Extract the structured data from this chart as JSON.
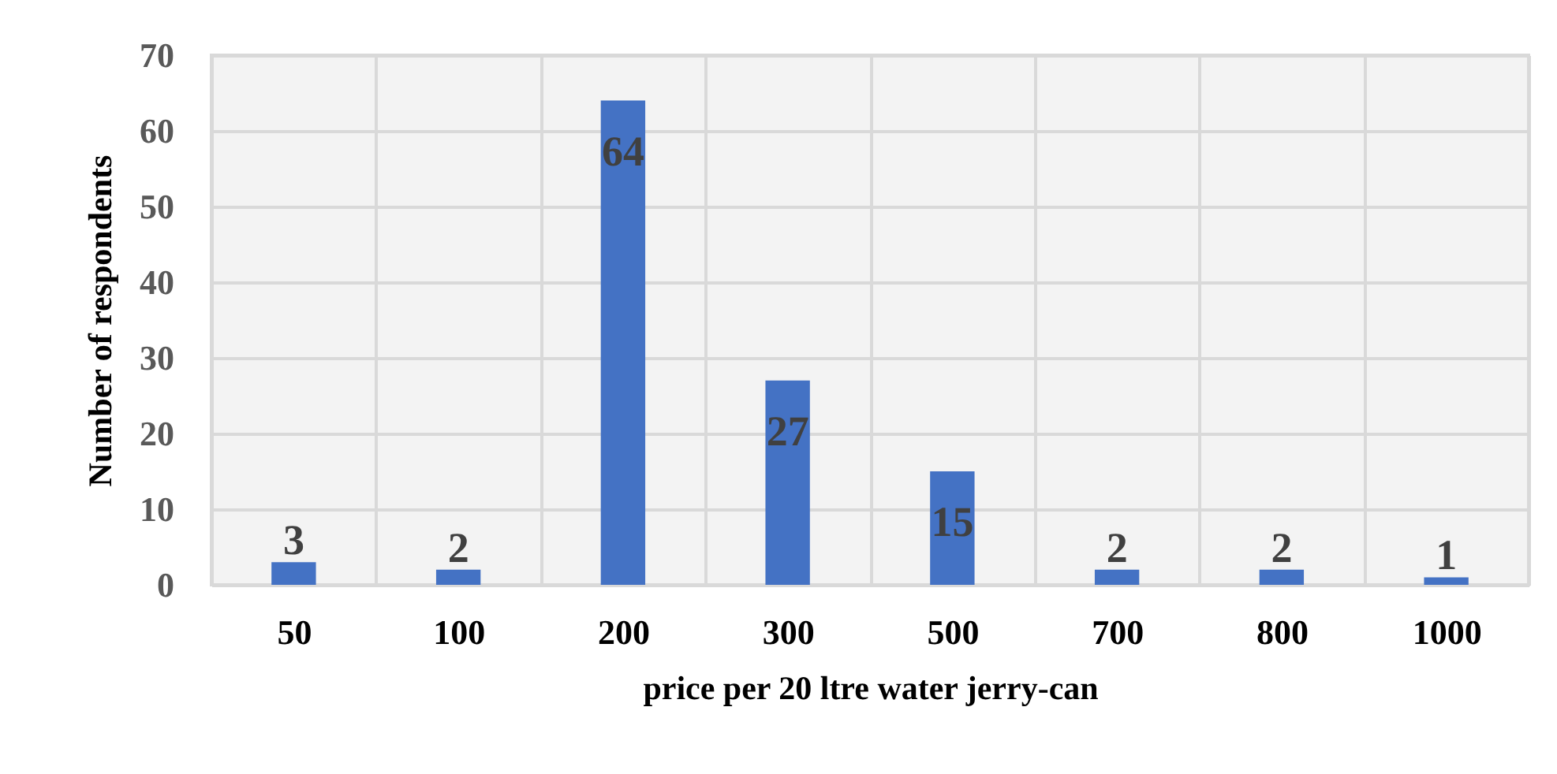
{
  "chart_data": {
    "type": "bar",
    "xlabel": "price per 20 ltre water jerry-can",
    "ylabel": "Number of respondents",
    "categories": [
      "50",
      "100",
      "200",
      "300",
      "500",
      "700",
      "800",
      "1000"
    ],
    "values": [
      3,
      2,
      64,
      27,
      15,
      2,
      2,
      1
    ],
    "color": "#4472c4",
    "ylim": [
      0,
      70
    ],
    "yticks": [
      0,
      10,
      20,
      30,
      40,
      50,
      60,
      70
    ],
    "grid": true,
    "data_labels": true
  }
}
